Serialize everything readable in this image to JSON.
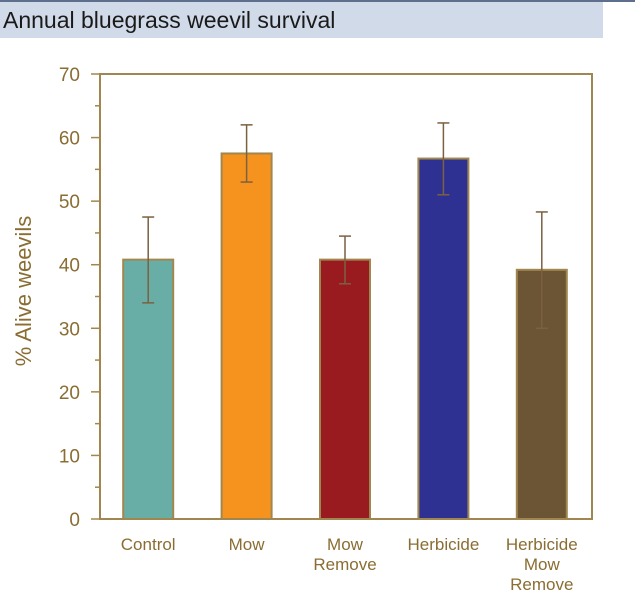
{
  "chart_data": {
    "type": "bar",
    "title": "Annual bluegrass weevil survival",
    "ylabel": "% Alive weevils",
    "xlabel": "",
    "ylim": [
      0,
      70
    ],
    "yticks": [
      "0",
      "10",
      "20",
      "30",
      "40",
      "50",
      "60",
      "70"
    ],
    "categories": [
      [
        "Control"
      ],
      [
        "Mow"
      ],
      [
        "Mow",
        "Remove"
      ],
      [
        "Herbicide"
      ],
      [
        "Herbicide",
        "Mow",
        "Remove"
      ]
    ],
    "values": [
      40.8,
      57.5,
      40.8,
      56.7,
      39.2
    ],
    "errors": [
      [
        34.0,
        47.5
      ],
      [
        53.0,
        62.0
      ],
      [
        37.0,
        44.5
      ],
      [
        51.0,
        62.3
      ],
      [
        30.0,
        48.3
      ]
    ],
    "colors": [
      "#69aea6",
      "#f6931f",
      "#9a1b1f",
      "#2e3192",
      "#6b5534"
    ],
    "axis_color": "#a1874f",
    "grid": false,
    "legend": "none"
  }
}
